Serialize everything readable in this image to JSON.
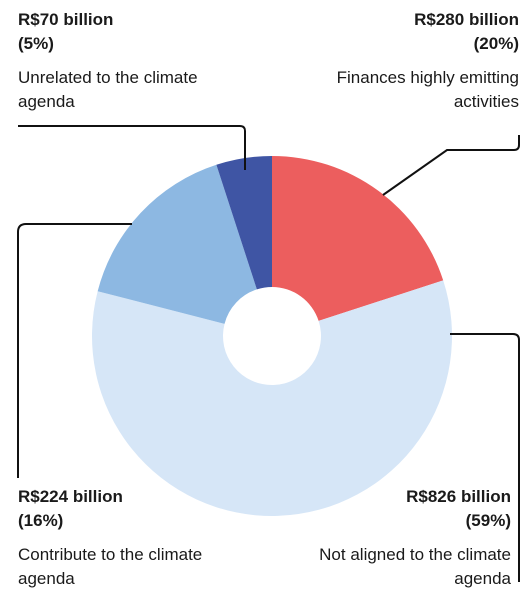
{
  "chart_data": {
    "type": "pie",
    "categories": [
      "Finances highly emitting activities",
      "Not aligned to the climate agenda",
      "Contribute to the climate agenda",
      "Unrelated to the climate agenda"
    ],
    "values": [
      280,
      826,
      224,
      70
    ],
    "unit": "R$ billion",
    "colors": [
      "#ec5e5e",
      "#d6e6f7",
      "#8db8e2",
      "#3f55a4"
    ],
    "labels": [
      {
        "amount": "R$280 billion",
        "percent": "(20%)",
        "desc": "Finances highly emitting activities"
      },
      {
        "amount": "R$826 billion",
        "percent": "(59%)",
        "desc": "Not aligned to the climate agenda"
      },
      {
        "amount": "R$224 billion",
        "percent": "(16%)",
        "desc": "Contribute to the climate agenda"
      },
      {
        "amount": "R$70 billion",
        "percent": "(5%)",
        "desc": "Unrelated to the climate agenda"
      }
    ]
  }
}
